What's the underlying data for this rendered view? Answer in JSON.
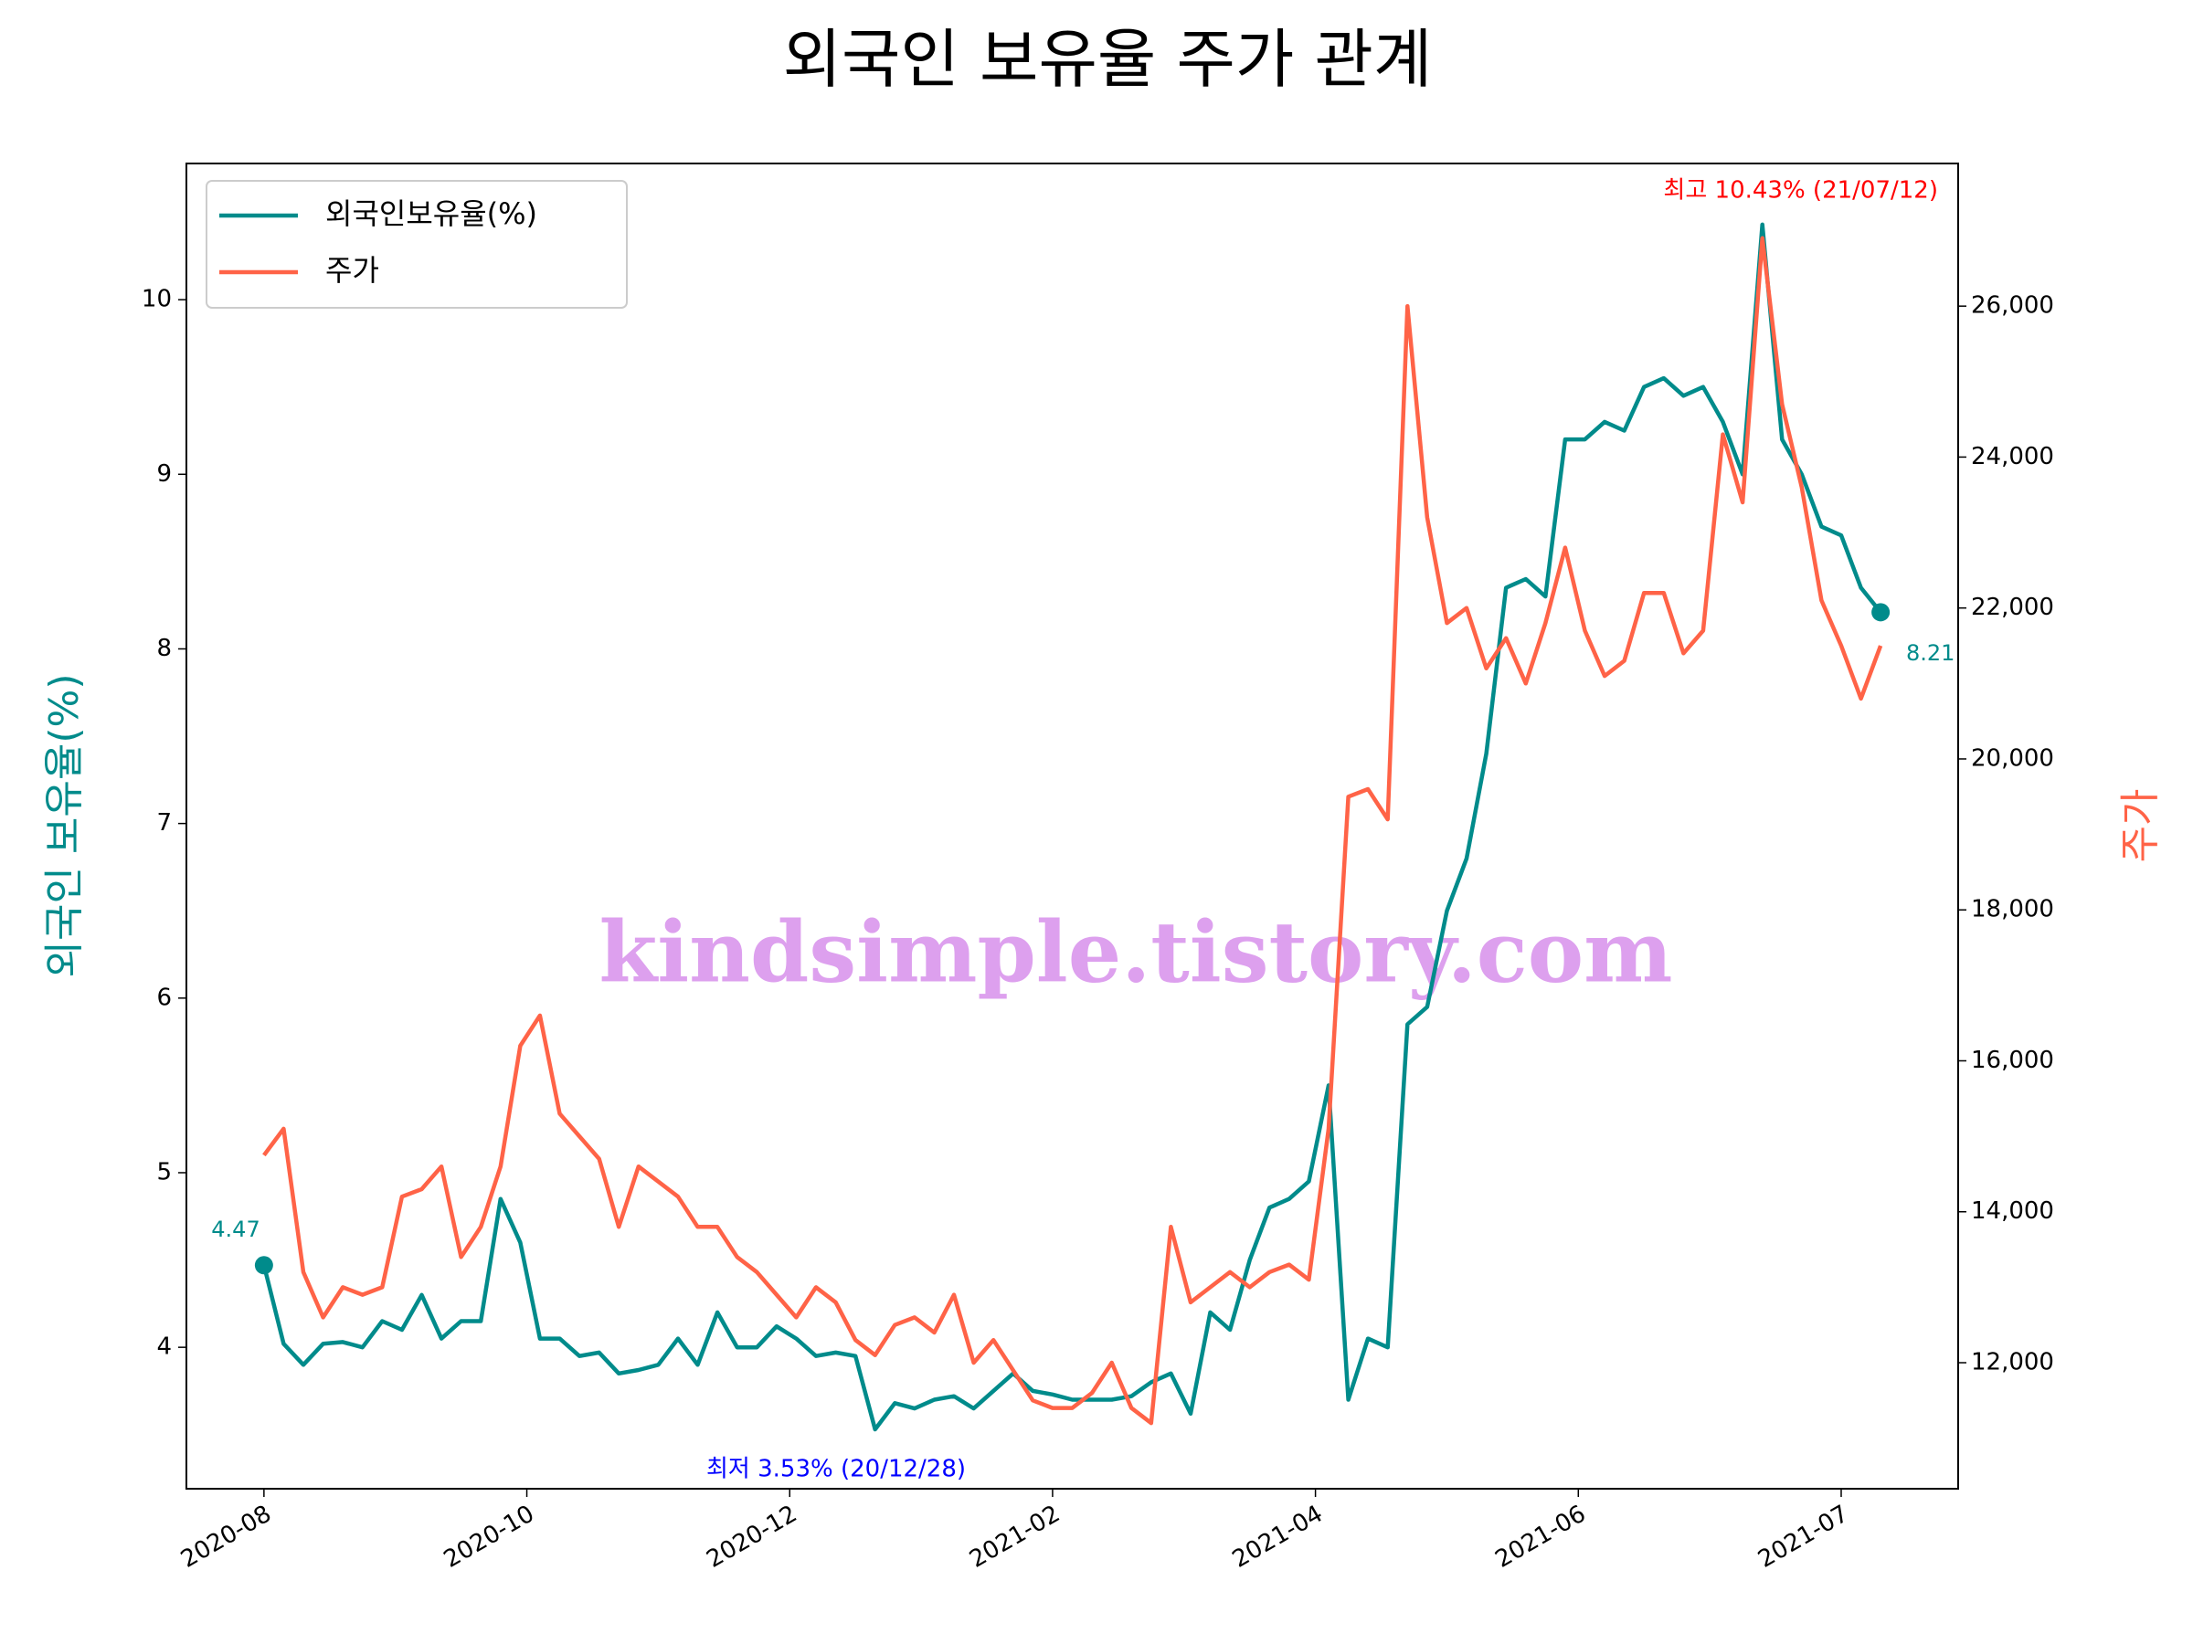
{
  "chart_data": {
    "type": "line",
    "title": "외국인 보유율 주가 관계",
    "ylabel": "외국인 보유율(%)",
    "y2label": "주가",
    "x": [
      0,
      3,
      6,
      9,
      12,
      15,
      18,
      21,
      24,
      27,
      30,
      33,
      36,
      39,
      42,
      45,
      48,
      51,
      54,
      57,
      60,
      63,
      66,
      69,
      72,
      75,
      78,
      81,
      84,
      87,
      90,
      93,
      96,
      99,
      102,
      105,
      108,
      111,
      114,
      117,
      120,
      123,
      126,
      129,
      132,
      135,
      138,
      141,
      144,
      147,
      150,
      153,
      156,
      159,
      162,
      165,
      168,
      171,
      174,
      177,
      180,
      183,
      186,
      189,
      192,
      195,
      198,
      201,
      204,
      207,
      210,
      213,
      216,
      219,
      222,
      225,
      228,
      231,
      234,
      237,
      240,
      243,
      246
    ],
    "series": [
      {
        "name": "외국인보유율(%)",
        "color": "#008b8b",
        "axis": "y",
        "values": [
          4.47,
          4.02,
          3.9,
          4.02,
          4.03,
          4.0,
          4.15,
          4.1,
          4.3,
          4.05,
          4.15,
          4.15,
          4.85,
          4.6,
          4.05,
          4.05,
          3.95,
          3.97,
          3.85,
          3.87,
          3.9,
          4.05,
          3.9,
          4.2,
          4.0,
          4.0,
          4.12,
          4.05,
          3.95,
          3.97,
          3.95,
          3.53,
          3.68,
          3.65,
          3.7,
          3.72,
          3.65,
          3.75,
          3.85,
          3.75,
          3.73,
          3.7,
          3.7,
          3.7,
          3.72,
          3.8,
          3.85,
          3.62,
          4.2,
          4.1,
          4.5,
          4.8,
          4.85,
          4.95,
          5.5,
          3.7,
          4.05,
          4.0,
          5.85,
          5.95,
          6.5,
          6.8,
          7.4,
          8.35,
          8.4,
          8.3,
          9.2,
          9.2,
          9.3,
          9.25,
          9.5,
          9.55,
          9.45,
          9.5,
          9.3,
          9.0,
          10.43,
          9.2,
          9.0,
          8.7,
          8.65,
          8.35,
          8.21
        ]
      },
      {
        "name": "주가",
        "color": "#ff6347",
        "axis": "y2",
        "values": [
          14750,
          15100,
          13200,
          12600,
          13000,
          12900,
          13000,
          14200,
          14300,
          14600,
          13400,
          13800,
          14600,
          16200,
          16600,
          15300,
          15000,
          14700,
          13800,
          14600,
          14400,
          14200,
          13800,
          13800,
          13400,
          13200,
          12900,
          12600,
          13000,
          12800,
          12300,
          12100,
          12500,
          12600,
          12400,
          12900,
          12000,
          12300,
          11900,
          11500,
          11400,
          11400,
          11600,
          12000,
          11400,
          11200,
          13800,
          12800,
          13000,
          13200,
          13000,
          13200,
          13300,
          13100,
          15100,
          19500,
          19600,
          19200,
          26000,
          23200,
          21800,
          22000,
          21200,
          21600,
          21000,
          21800,
          22800,
          21700,
          21100,
          21300,
          22200,
          22200,
          21400,
          21700,
          24300,
          23400,
          26900,
          24700,
          23600,
          22100,
          21500,
          20800,
          21500
        ]
      }
    ],
    "xlim": [
      -11.8,
      257.8
    ],
    "xticks": [
      {
        "value": 0,
        "label": "2020-08"
      },
      {
        "value": 40,
        "label": "2020-10"
      },
      {
        "value": 80,
        "label": "2020-12"
      },
      {
        "value": 120,
        "label": "2021-02"
      },
      {
        "value": 160,
        "label": "2021-04"
      },
      {
        "value": 200,
        "label": "2021-06"
      },
      {
        "value": 240,
        "label": "2021-07"
      }
    ],
    "ylim": [
      3.19,
      10.78
    ],
    "yticks": [
      4,
      5,
      6,
      7,
      8,
      9,
      10
    ],
    "y2lim": [
      10330,
      27890
    ],
    "y2ticks": [
      {
        "value": 12000,
        "label": "12,000"
      },
      {
        "value": 14000,
        "label": "14,000"
      },
      {
        "value": 16000,
        "label": "16,000"
      },
      {
        "value": 18000,
        "label": "18,000"
      },
      {
        "value": 20000,
        "label": "20,000"
      },
      {
        "value": 22000,
        "label": "22,000"
      },
      {
        "value": 24000,
        "label": "24,000"
      },
      {
        "value": 26000,
        "label": "26,000"
      }
    ],
    "legend": "upper left",
    "annotations": [
      "최고 10.43% (21/07/12)",
      "최저 3.53% (20/12/28)",
      "4.47",
      "8.21"
    ],
    "watermark": "kindsimple.tistory.com"
  }
}
